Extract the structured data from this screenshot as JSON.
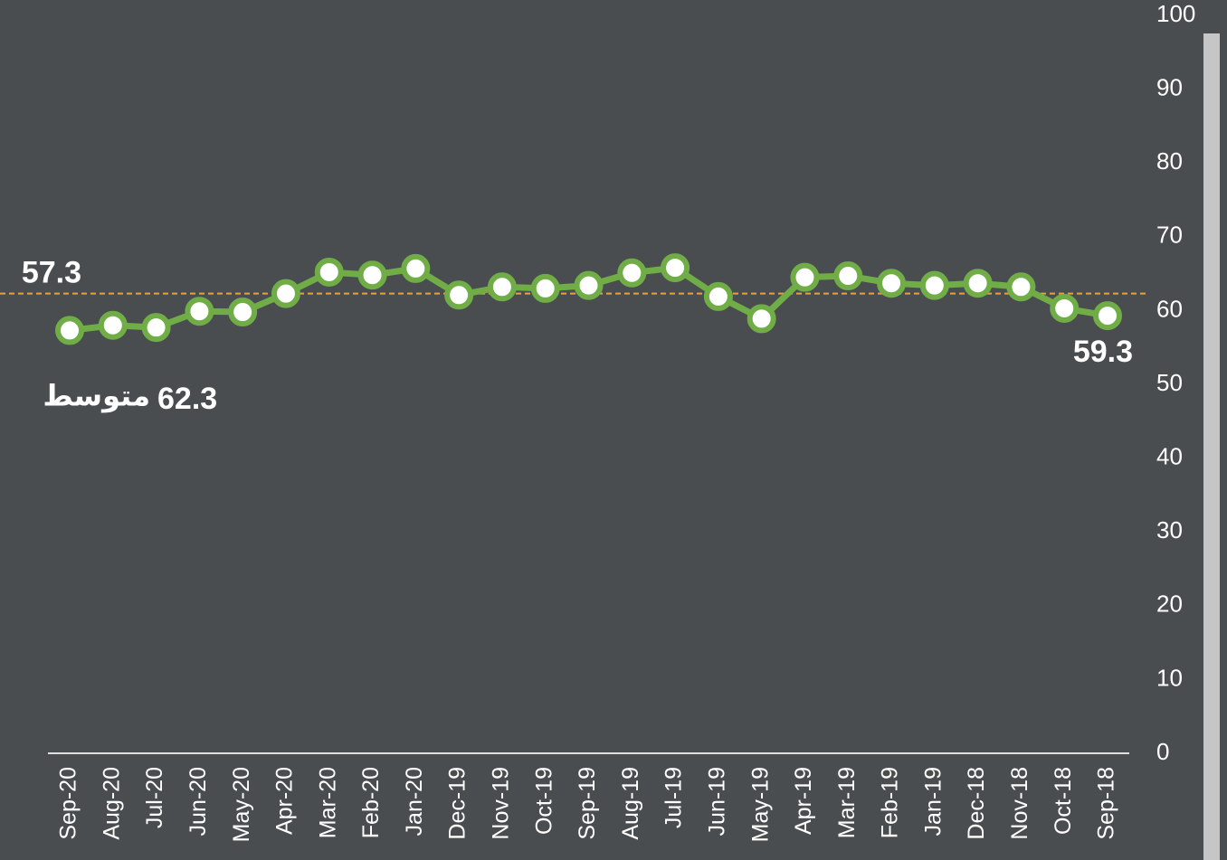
{
  "chart_data": {
    "type": "line",
    "categories": [
      "Sep-20",
      "Aug-20",
      "Jul-20",
      "Jun-20",
      "May-20",
      "Apr-20",
      "Mar-20",
      "Feb-20",
      "Jan-20",
      "Dec-19",
      "Nov-19",
      "Oct-19",
      "Sep-19",
      "Aug-19",
      "Jul-19",
      "Jun-19",
      "May-19",
      "Apr-19",
      "Mar-19",
      "Feb-19",
      "Jan-19",
      "Dec-18",
      "Nov-18",
      "Oct-18",
      "Sep-18"
    ],
    "values": [
      57.3,
      58.0,
      57.7,
      59.9,
      59.8,
      62.3,
      65.2,
      64.8,
      65.7,
      62.1,
      63.2,
      63.0,
      63.4,
      65.1,
      65.8,
      61.9,
      58.9,
      64.5,
      64.7,
      63.7,
      63.4,
      63.7,
      63.2,
      60.3,
      59.3
    ],
    "color": "#70ad47",
    "labeled_points": [
      0,
      24
    ],
    "average": {
      "value": 62.3,
      "label": "متوسط",
      "color": "#e9a23b"
    },
    "y_axis_side": "right",
    "ylim": [
      0,
      100
    ],
    "yticks": [
      0,
      10,
      20,
      30,
      40,
      50,
      60,
      70,
      80,
      90,
      100
    ],
    "grid": false
  }
}
